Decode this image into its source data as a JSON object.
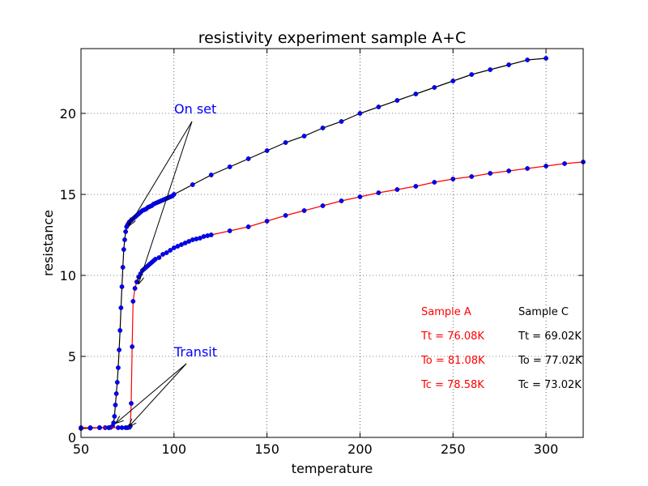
{
  "chart_data": {
    "type": "line",
    "title": "resistivity experiment sample A+C",
    "xlabel": "temperature",
    "ylabel": "resistance",
    "xlim": [
      50,
      320
    ],
    "ylim": [
      0,
      24
    ],
    "xticks": [
      50,
      100,
      150,
      200,
      250,
      300
    ],
    "yticks": [
      0,
      5,
      10,
      15,
      20
    ],
    "grid": true,
    "marker_color": "#0000ff",
    "series": [
      {
        "line_color": "#000000",
        "x": [
          50,
          55,
          60,
          63,
          65,
          66,
          67,
          67.5,
          68,
          68.5,
          69,
          69.5,
          70,
          70.5,
          71,
          71.5,
          72,
          72.5,
          73,
          73.5,
          74,
          74.5,
          75,
          75.5,
          76,
          77,
          78,
          79,
          80,
          81,
          82,
          83,
          84,
          85,
          86,
          87,
          88,
          89,
          90,
          91,
          92,
          93,
          94,
          95,
          96,
          97,
          98,
          99,
          100,
          110,
          120,
          130,
          140,
          150,
          160,
          170,
          180,
          190,
          200,
          210,
          220,
          230,
          240,
          250,
          260,
          270,
          280,
          290,
          300
        ],
        "y": [
          0.55,
          0.57,
          0.6,
          0.6,
          0.6,
          0.62,
          0.7,
          0.9,
          1.3,
          2.0,
          2.7,
          3.4,
          4.3,
          5.4,
          6.6,
          8.0,
          9.3,
          10.5,
          11.6,
          12.2,
          12.7,
          13.0,
          13.1,
          13.2,
          13.3,
          13.4,
          13.5,
          13.6,
          13.7,
          13.8,
          13.9,
          14.0,
          14.05,
          14.1,
          14.2,
          14.25,
          14.3,
          14.4,
          14.45,
          14.5,
          14.55,
          14.6,
          14.65,
          14.7,
          14.75,
          14.8,
          14.85,
          14.9,
          15.0,
          15.6,
          16.2,
          16.7,
          17.2,
          17.7,
          18.2,
          18.6,
          19.1,
          19.5,
          20.0,
          20.4,
          20.8,
          21.2,
          21.6,
          22.0,
          22.4,
          22.7,
          23.0,
          23.3,
          23.4
        ]
      },
      {
        "line_color": "#ff0000",
        "x": [
          50,
          55,
          60,
          65,
          70,
          72,
          74,
          75,
          76,
          76.5,
          77,
          77.5,
          78,
          79,
          80,
          81,
          82,
          83,
          84,
          85,
          86,
          87,
          88,
          89,
          90,
          92,
          94,
          96,
          98,
          100,
          102,
          104,
          106,
          108,
          110,
          112,
          114,
          116,
          118,
          120,
          130,
          140,
          150,
          160,
          170,
          180,
          190,
          200,
          210,
          220,
          230,
          240,
          250,
          260,
          270,
          280,
          290,
          300,
          310,
          320
        ],
        "y": [
          0.6,
          0.6,
          0.6,
          0.6,
          0.6,
          0.6,
          0.6,
          0.6,
          0.62,
          0.7,
          2.1,
          5.6,
          8.4,
          9.2,
          9.6,
          9.9,
          10.1,
          10.3,
          10.4,
          10.5,
          10.6,
          10.7,
          10.8,
          10.9,
          11.0,
          11.1,
          11.3,
          11.4,
          11.55,
          11.7,
          11.8,
          11.9,
          12.0,
          12.1,
          12.2,
          12.25,
          12.3,
          12.4,
          12.45,
          12.5,
          12.75,
          13.0,
          13.35,
          13.7,
          14.0,
          14.3,
          14.6,
          14.85,
          15.1,
          15.3,
          15.5,
          15.75,
          15.95,
          16.1,
          16.3,
          16.45,
          16.6,
          16.75,
          16.9,
          17.0
        ]
      }
    ],
    "annotations": [
      {
        "text": "On set",
        "x": 100,
        "y": 20,
        "color": "#0000ff",
        "arrows_to": [
          [
            76,
            13.1
          ],
          [
            81,
            9.5
          ]
        ]
      },
      {
        "text": "Transit",
        "x": 100,
        "y": 5,
        "color": "#0000ff",
        "arrows_to": [
          [
            69,
            0.9
          ],
          [
            76,
            0.7
          ]
        ]
      }
    ],
    "info": {
      "sample_a": {
        "label": "Sample A",
        "tt": "Tt = 76.08K",
        "to": "To = 81.08K",
        "tc": "Tc = 78.58K",
        "color": "#ff0000"
      },
      "sample_c": {
        "label": "Sample C",
        "tt": "Tt = 69.02K",
        "to": "To = 77.02K",
        "tc": "Tc = 73.02K",
        "color": "#000000"
      }
    }
  }
}
